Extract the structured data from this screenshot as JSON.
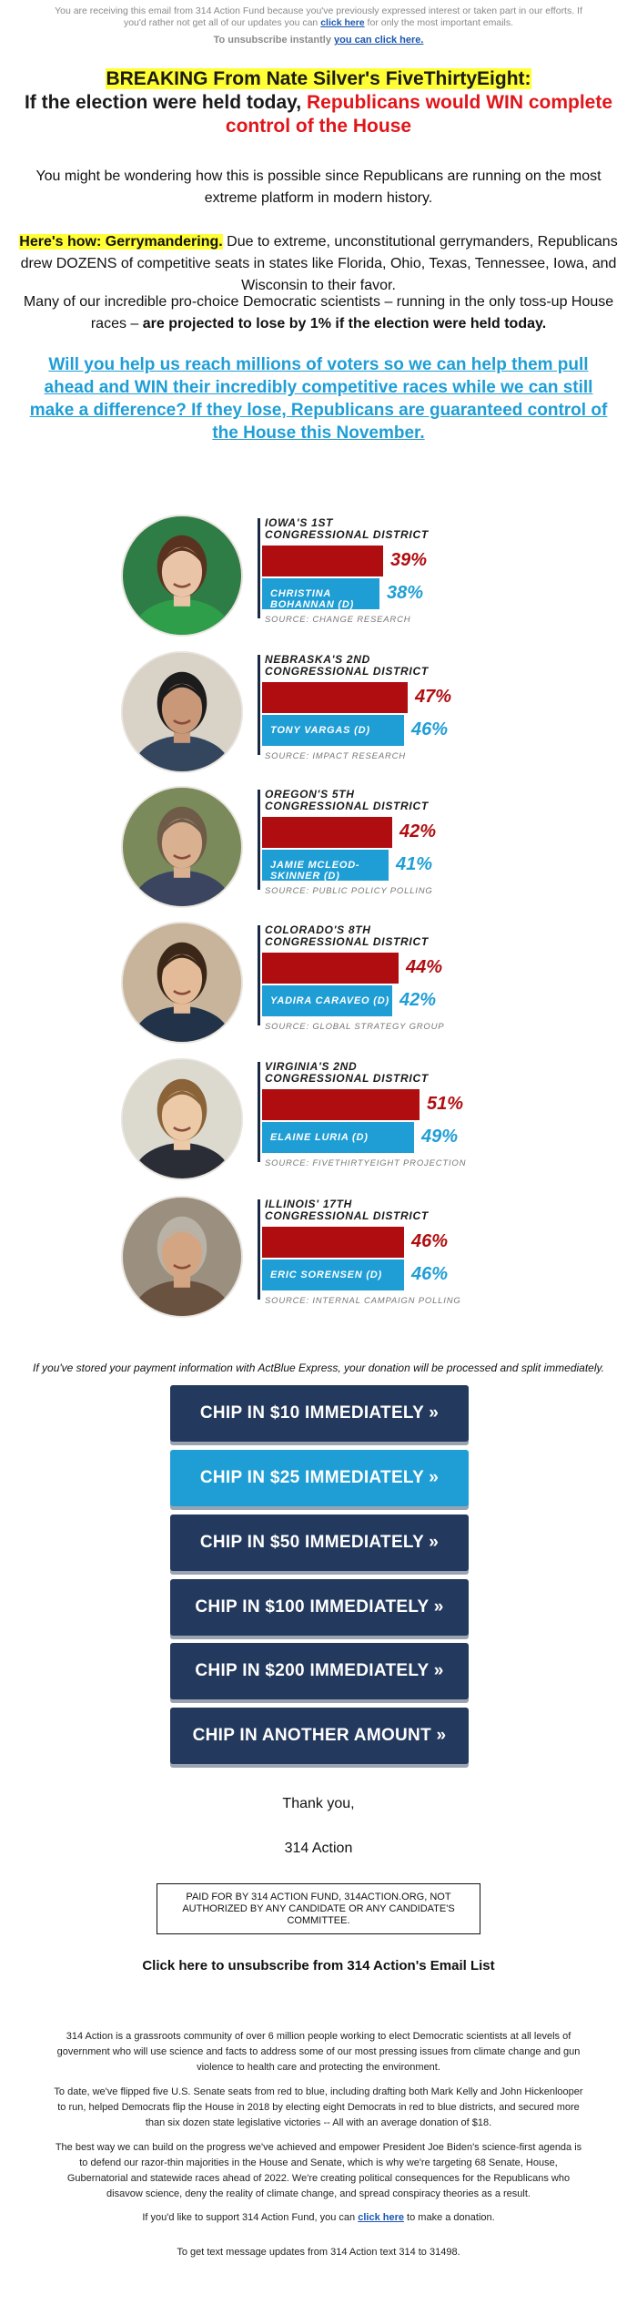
{
  "preheader": {
    "text_1": "You are receiving this email from 314 Action Fund because you've previously expressed interest or taken part in our efforts. If you'd rather not get all of our updates you can ",
    "link": "click here",
    "text_2": " for only the most important emails.",
    "unsub_text": "To unsubscribe instantly ",
    "unsub_link": "you can click here."
  },
  "headline": {
    "line1": "BREAKING From Nate Silver's FiveThirtyEight:",
    "line2_black": "If the election were held today, ",
    "line2_red": "Republicans would WIN complete control of the House"
  },
  "body": {
    "p1": "You might be wondering how this is possible since Republicans are running on the most extreme platform in modern history.",
    "p2_highlight": "Here's how: Gerrymandering.",
    "p2_rest": " Due to extreme, unconstitutional gerrymanders, Republicans drew DOZENS of competitive seats in states like Florida, Ohio, Texas, Tennessee, Iowa, and Wisconsin to their favor.",
    "p3_plain": "Many of our incredible pro-choice Democratic scientists – running in the only toss-up House races – ",
    "p3_bold": "are projected to lose by 1% if the election were held today.",
    "cta": "Will you help us reach millions of voters so we can help them pull ahead and WIN their incredibly competitive races while we can still make a difference? If they lose, Republicans are guaranteed control of the House this November."
  },
  "races": [
    {
      "district_1": "IOWA'S 1ST",
      "district_2": "CONGRESSIONAL DISTRICT",
      "rep_pct": "39%",
      "dem_pct": "38%",
      "rep_share": 0.39,
      "dem_share": 0.38,
      "candidate": "CHRISTINA BOHANNAN (D)",
      "source": "SOURCE: CHANGE RESEARCH"
    },
    {
      "district_1": "NEBRASKA'S 2ND",
      "district_2": "CONGRESSIONAL DISTRICT",
      "rep_pct": "47%",
      "dem_pct": "46%",
      "rep_share": 0.47,
      "dem_share": 0.46,
      "candidate": "TONY VARGAS (D)",
      "source": "SOURCE: IMPACT RESEARCH"
    },
    {
      "district_1": "OREGON'S 5TH",
      "district_2": "CONGRESSIONAL DISTRICT",
      "rep_pct": "42%",
      "dem_pct": "41%",
      "rep_share": 0.42,
      "dem_share": 0.41,
      "candidate": "JAMIE MCLEOD-SKINNER (D)",
      "source": "SOURCE: PUBLIC POLICY POLLING"
    },
    {
      "district_1": "COLORADO'S 8TH",
      "district_2": "CONGRESSIONAL DISTRICT",
      "rep_pct": "44%",
      "dem_pct": "42%",
      "rep_share": 0.44,
      "dem_share": 0.42,
      "candidate": "YADIRA CARAVEO (D)",
      "source": "SOURCE: GLOBAL STRATEGY GROUP"
    },
    {
      "district_1": "VIRGINIA'S 2ND",
      "district_2": "CONGRESSIONAL DISTRICT",
      "rep_pct": "51%",
      "dem_pct": "49%",
      "rep_share": 0.51,
      "dem_share": 0.49,
      "candidate": "ELAINE LURIA (D)",
      "source": "SOURCE: FIVETHIRTYEIGHT PROJECTION"
    },
    {
      "district_1": "ILLINOIS' 17TH",
      "district_2": "CONGRESSIONAL DISTRICT",
      "rep_pct": "46%",
      "dem_pct": "46%",
      "rep_share": 0.46,
      "dem_share": 0.46,
      "candidate": "ERIC SORENSEN (D)",
      "source": "SOURCE: INTERNAL CAMPAIGN POLLING"
    }
  ],
  "actblue_note": "If you've stored your payment information with ActBlue Express, your donation will be processed and split immediately.",
  "chips": [
    "CHIP IN $10 IMMEDIATELY »",
    "CHIP IN $25 IMMEDIATELY »",
    "CHIP IN $50 IMMEDIATELY »",
    "CHIP IN $100 IMMEDIATELY »",
    "CHIP IN $200 IMMEDIATELY »",
    "CHIP IN ANOTHER AMOUNT »"
  ],
  "signoff": {
    "thanks": "Thank you,",
    "name": "314 Action"
  },
  "paid_for": "PAID FOR BY 314 ACTION FUND, 314ACTION.ORG, NOT AUTHORIZED BY ANY CANDIDATE OR ANY CANDIDATE'S COMMITTEE.",
  "unsubscribe_bottom": "Click here to unsubscribe from 314 Action's Email List",
  "footer": {
    "f1": "314 Action is a grassroots community of over 6 million people working to elect Democratic scientists at all levels of government who will use science and facts to address some of our most pressing issues from climate change and gun violence to health care and protecting the environment.",
    "f2": "To date, we've flipped five U.S. Senate seats from red to blue, including drafting both Mark Kelly and John Hickenlooper to run, helped Democrats flip the House in 2018 by electing eight Democrats in red to blue districts, and secured more than six dozen state legislative victories -- All with an average donation of $18.",
    "f3": "The best way we can build on the progress we've achieved and empower President Joe Biden's science-first agenda is to defend our razor-thin majorities in the House and Senate, which is why we're targeting 68 Senate, House, Gubernatorial and statewide races ahead of 2022. We're creating political consequences for the Republicans who disavow science, deny the reality of climate change, and spread conspiracy theories as a result.",
    "f4_a": "If you'd like to support 314 Action Fund, you can ",
    "f4_link": "click here",
    "f4_b": " to make a donation.",
    "f5": "To get text message updates from 314 Action text 314 to 31498."
  },
  "colors": {
    "rep_red": "#b00d10",
    "dem_blue": "#1f9ed6",
    "navy_button": "#23395d",
    "headline_red": "#e0161b",
    "highlight_yellow": "#ffff33"
  }
}
